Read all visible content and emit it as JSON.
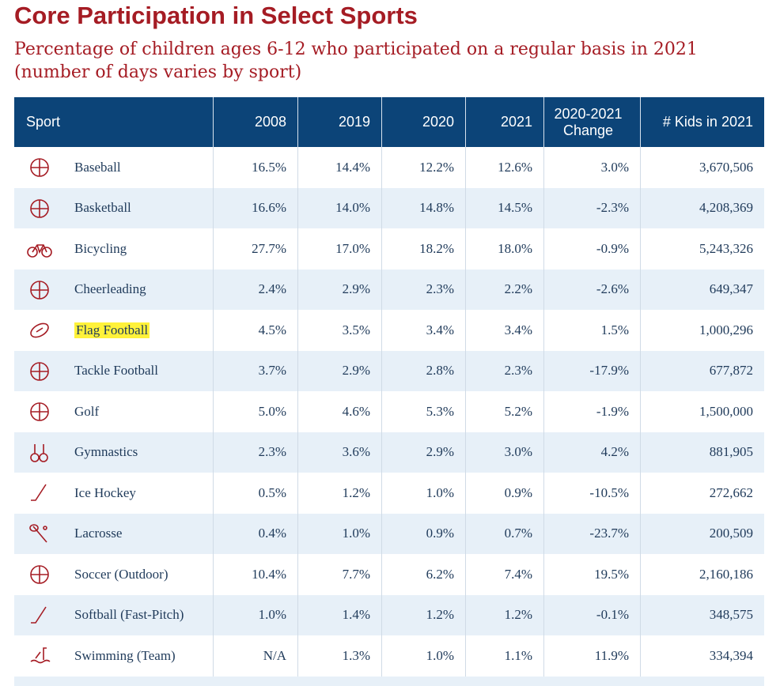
{
  "header": {
    "title": "Core Participation in Select Sports",
    "subtitle": "Percentage of children ages 6-12 who participated on a regular basis in 2021 (number of days varies by sport)"
  },
  "table": {
    "columns": [
      "Sport",
      "2008",
      "2019",
      "2020",
      "2021",
      "2020-2021 Change",
      "# Kids in 2021"
    ],
    "rows": [
      [
        "Baseball",
        "16.5%",
        "14.4%",
        "12.2%",
        "12.6%",
        "3.0%",
        "3,670,506"
      ],
      [
        "Basketball",
        "16.6%",
        "14.0%",
        "14.8%",
        "14.5%",
        "-2.3%",
        "4,208,369"
      ],
      [
        "Bicycling",
        "27.7%",
        "17.0%",
        "18.2%",
        "18.0%",
        "-0.9%",
        "5,243,326"
      ],
      [
        "Cheerleading",
        "2.4%",
        "2.9%",
        "2.3%",
        "2.2%",
        "-2.6%",
        "649,347"
      ],
      [
        "Flag Football",
        "4.5%",
        "3.5%",
        "3.4%",
        "3.4%",
        "1.5%",
        "1,000,296"
      ],
      [
        "Tackle Football",
        "3.7%",
        "2.9%",
        "2.8%",
        "2.3%",
        "-17.9%",
        "677,872"
      ],
      [
        "Golf",
        "5.0%",
        "4.6%",
        "5.3%",
        "5.2%",
        "-1.9%",
        "1,500,000"
      ],
      [
        "Gymnastics",
        "2.3%",
        "3.6%",
        "2.9%",
        "3.0%",
        "4.2%",
        "881,905"
      ],
      [
        "Ice Hockey",
        "0.5%",
        "1.2%",
        "1.0%",
        "0.9%",
        "-10.5%",
        "272,662"
      ],
      [
        "Lacrosse",
        "0.4%",
        "1.0%",
        "0.9%",
        "0.7%",
        "-23.7%",
        "200,509"
      ],
      [
        "Soccer (Outdoor)",
        "10.4%",
        "7.7%",
        "6.2%",
        "7.4%",
        "19.5%",
        "2,160,186"
      ],
      [
        "Softball (Fast-Pitch)",
        "1.0%",
        "1.4%",
        "1.2%",
        "1.2%",
        "-0.1%",
        "348,575"
      ],
      [
        "Swimming (Team)",
        "N/A",
        "1.3%",
        "1.0%",
        "1.1%",
        "11.9%",
        "334,394"
      ]
    ]
  }
}
